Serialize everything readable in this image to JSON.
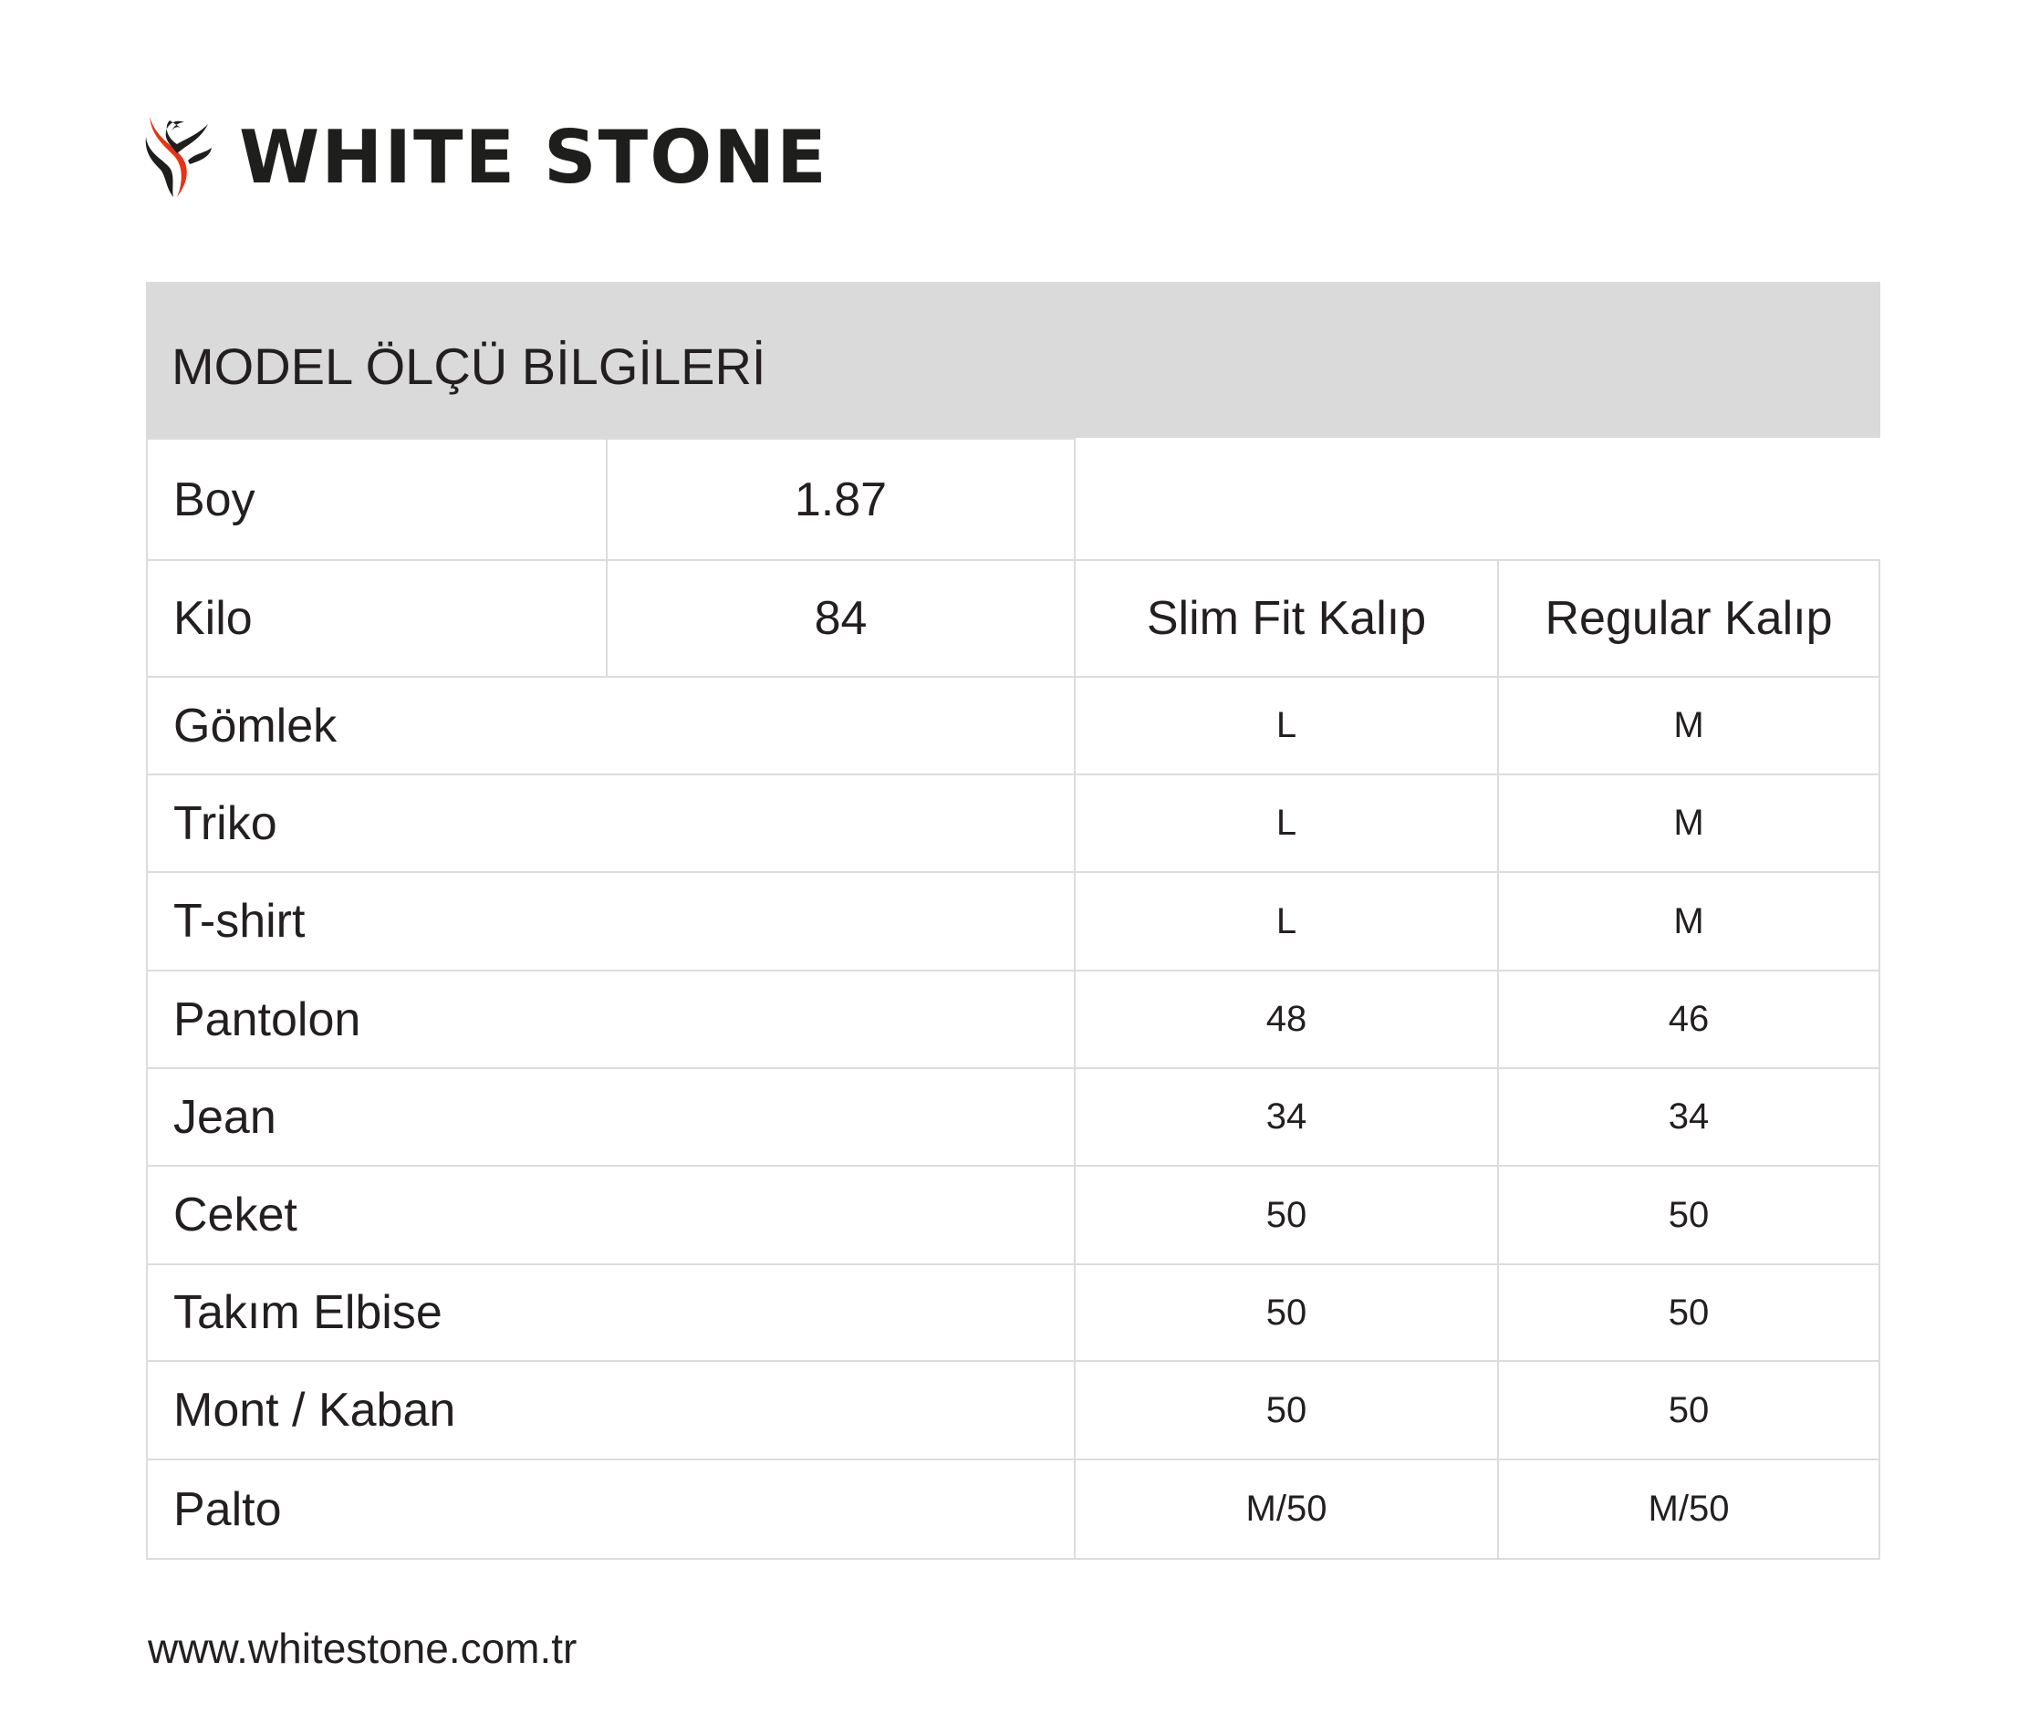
{
  "brand": {
    "name": "WHITE STONE",
    "accent": "#e63312"
  },
  "title": "MODEL ÖLÇÜ BİLGİLERİ",
  "measurements": [
    {
      "label": "Boy",
      "value": "1.87"
    },
    {
      "label": "Kilo",
      "value": "84"
    }
  ],
  "columns": [
    "Slim Fit Kalıp",
    "Regular Kalıp"
  ],
  "rows": [
    {
      "label": "Gömlek",
      "slim": "L",
      "regular": "M"
    },
    {
      "label": "Triko",
      "slim": "L",
      "regular": "M"
    },
    {
      "label": "T-shirt",
      "slim": "L",
      "regular": "M"
    },
    {
      "label": "Pantolon",
      "slim": "48",
      "regular": "46"
    },
    {
      "label": "Jean",
      "slim": "34",
      "regular": "34"
    },
    {
      "label": "Ceket",
      "slim": "50",
      "regular": "50"
    },
    {
      "label": "Takım Elbise",
      "slim": "50",
      "regular": "50"
    },
    {
      "label": "Mont / Kaban",
      "slim": "50",
      "regular": "50"
    },
    {
      "label": "Palto",
      "slim": "M/50",
      "regular": "M/50"
    }
  ],
  "footer": {
    "url": "www.whitestone.com.tr"
  }
}
